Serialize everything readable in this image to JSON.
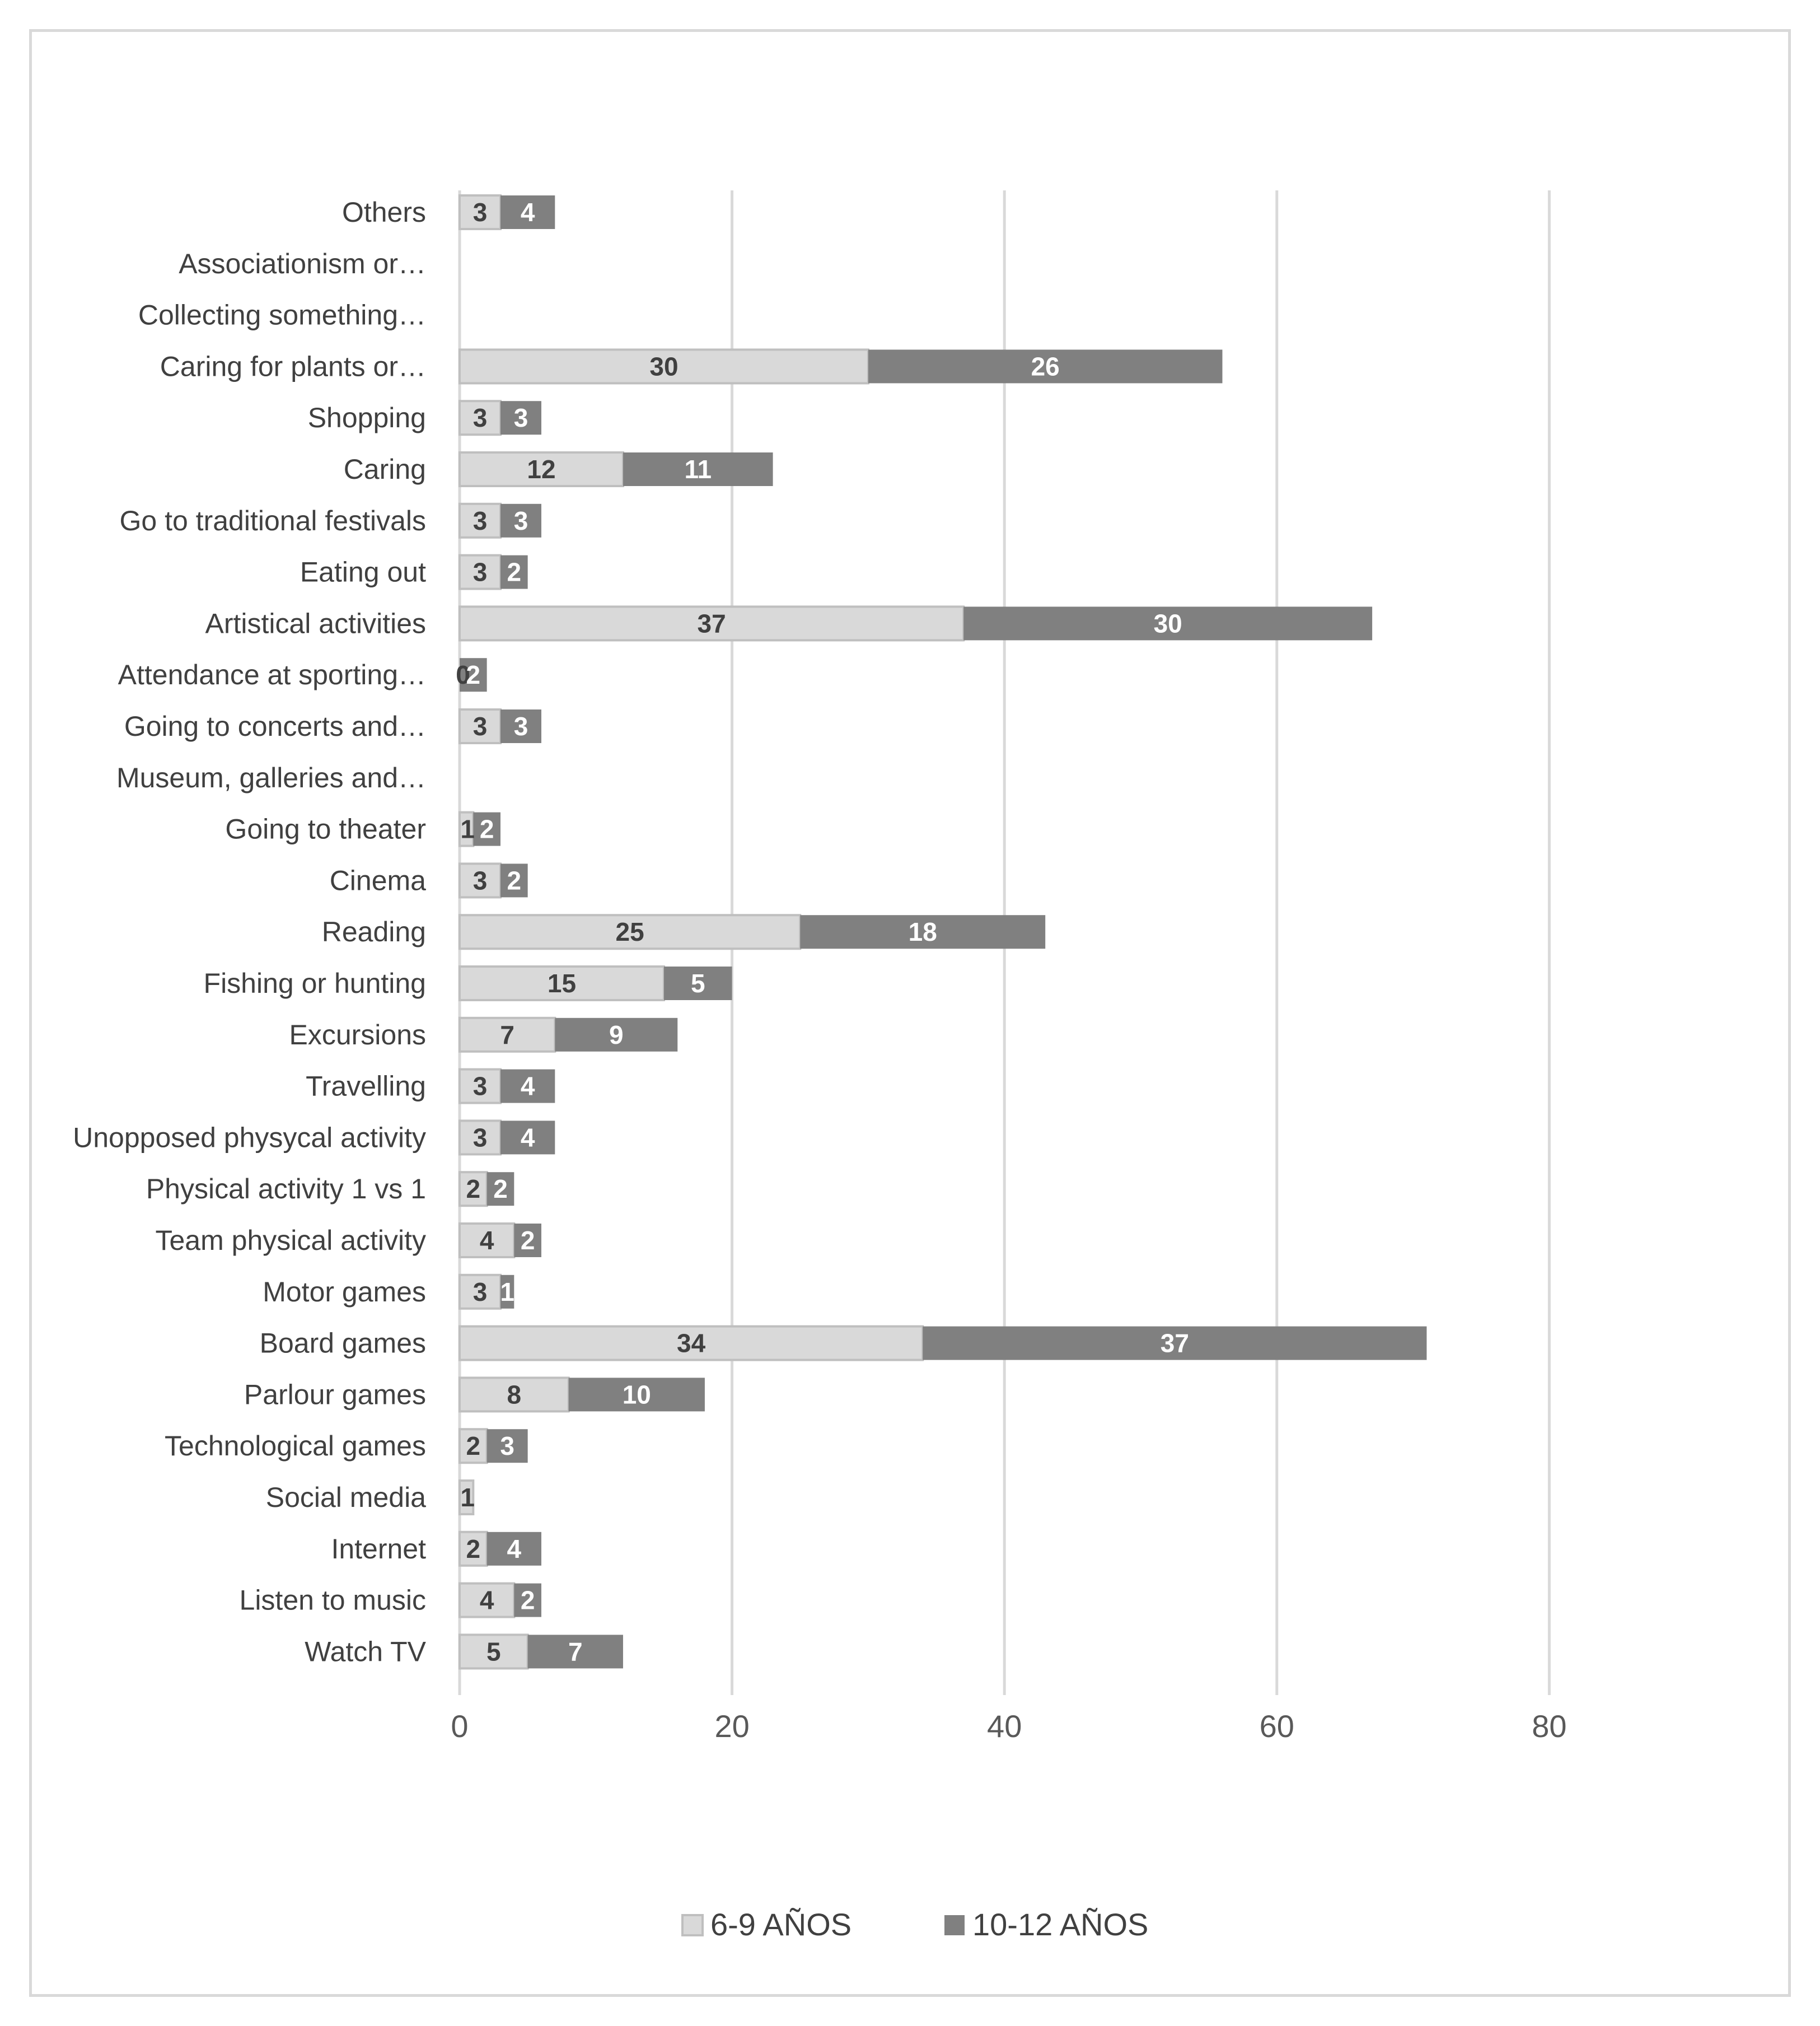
{
  "chart_data": {
    "type": "bar",
    "orientation": "horizontal",
    "stacked": true,
    "title": "",
    "xlabel": "",
    "ylabel": "",
    "xlim": [
      0,
      80
    ],
    "xticks": [
      "0",
      "20",
      "40",
      "60",
      "80"
    ],
    "grid": true,
    "legend_position": "bottom",
    "categories": [
      "Others",
      "Associationism or…",
      "Collecting something…",
      "Caring for plants or…",
      "Shopping",
      "Caring",
      "Go to traditional festivals",
      "Eating out",
      "Artistical activities",
      "Attendance at sporting…",
      "Going to concerts and…",
      "Museum, galleries and…",
      "Going to theater",
      "Cinema",
      "Reading",
      "Fishing or hunting",
      "Excursions",
      "Travelling",
      "Unopposed physycal activity",
      "Physical activity 1 vs 1",
      "Team physical activity",
      "Motor games",
      "Board games",
      "Parlour games",
      "Technological games",
      "Social media",
      "Internet",
      "Listen to music",
      "Watch TV"
    ],
    "series": [
      {
        "name": "6-9 AÑOS",
        "color": "#d9d9d9",
        "label_color": "#404040",
        "values": [
          3,
          null,
          null,
          30,
          3,
          12,
          3,
          3,
          37,
          0,
          3,
          null,
          1,
          3,
          25,
          15,
          7,
          3,
          3,
          2,
          4,
          3,
          34,
          8,
          2,
          1,
          2,
          4,
          5
        ]
      },
      {
        "name": "10-12 AÑOS",
        "color": "#808080",
        "label_color": "#ffffff",
        "values": [
          4,
          null,
          null,
          26,
          3,
          11,
          3,
          2,
          30,
          2,
          3,
          null,
          2,
          2,
          18,
          5,
          9,
          4,
          4,
          2,
          2,
          1,
          37,
          10,
          3,
          0,
          4,
          2,
          7
        ]
      }
    ]
  }
}
